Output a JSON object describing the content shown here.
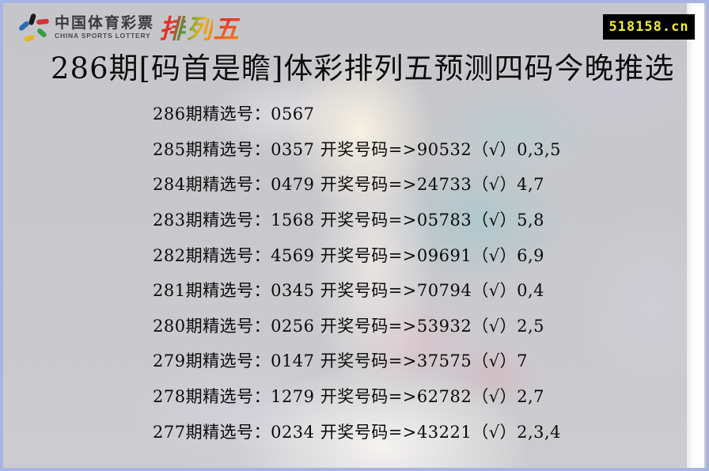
{
  "header": {
    "brand_cn": "中国体育彩票",
    "brand_en": "CHINA SPORTS LOTTERY",
    "product_chars": [
      "排",
      "列",
      "五"
    ],
    "logo_colors": {
      "black": "#1b1b1b",
      "red": "#d5332f",
      "blue": "#2b6bb3",
      "green": "#3a9a47",
      "yellow": "#e8b32a"
    }
  },
  "badge": {
    "domain": "518158.cn",
    "bg": "#000000",
    "fg": "#f2ea36"
  },
  "title": "286期[码首是瞻]体彩排列五预测四码今晚推选",
  "predictions": [
    "286期精选号：0567",
    "285期精选号：0357 开奖号码=>90532（√）0,3,5",
    "284期精选号：0479 开奖号码=>24733（√）4,7",
    "283期精选号：1568 开奖号码=>05783（√）5,8",
    "282期精选号：4569 开奖号码=>09691（√）6,9",
    "281期精选号：0345 开奖号码=>70794（√）0,4",
    "280期精选号：0256 开奖号码=>53932（√）2,5",
    "279期精选号：0147 开奖号码=>37575（√）7",
    "278期精选号：1279 开奖号码=>62782（√）2,7",
    "277期精选号：0234 开奖号码=>43221（√）2,3,4"
  ],
  "colors": {
    "page_border": "#a8b5e2",
    "background": "#c8c8cc",
    "text": "#0d0d0d"
  }
}
